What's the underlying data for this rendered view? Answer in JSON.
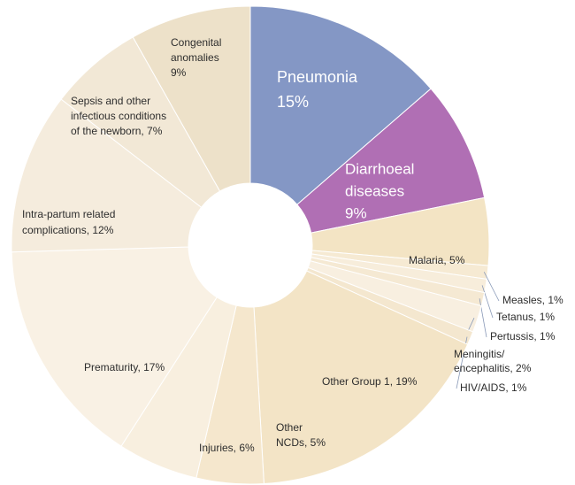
{
  "chart_data": {
    "type": "donut",
    "values": [
      15,
      9,
      5,
      1,
      1,
      1,
      2,
      1,
      19,
      5,
      6,
      17,
      12,
      7,
      9
    ],
    "value_labels": [
      [
        "Pneumonia",
        "15%"
      ],
      [
        "Diarrhoeal",
        "diseases",
        "9%"
      ],
      [
        "Malaria, 5%"
      ],
      [
        "Measles, 1%"
      ],
      [
        "Tetanus, 1%"
      ],
      [
        "Pertussis, 1%"
      ],
      [
        "Meningitis/",
        "encephalitis, 2%"
      ],
      [
        "HIV/AIDS, 1%"
      ],
      [
        "Other Group 1, 19%"
      ],
      [
        "Other",
        "NCDs, 5%"
      ],
      [
        "Injuries, 6%"
      ],
      [
        "Prematurity, 17%"
      ],
      [
        "Intra-partum related",
        "complications, 12%"
      ],
      [
        "Sepsis and other",
        "infectious conditions",
        "of the newborn, 7%"
      ],
      [
        "Congenital",
        "anomalies",
        "9%"
      ]
    ],
    "colors": [
      "#8497c5",
      "#b06fb4",
      "#f3e4c4",
      "#f6ead3",
      "#f7eddb",
      "#f5e9d3",
      "#f8efe0",
      "#f4e7cf",
      "#f3e4c6",
      "#f5e7cd",
      "#f8efdf",
      "#f9f1e4",
      "#f5ecdd",
      "#f2e8d6",
      "#ede1c9"
    ]
  }
}
